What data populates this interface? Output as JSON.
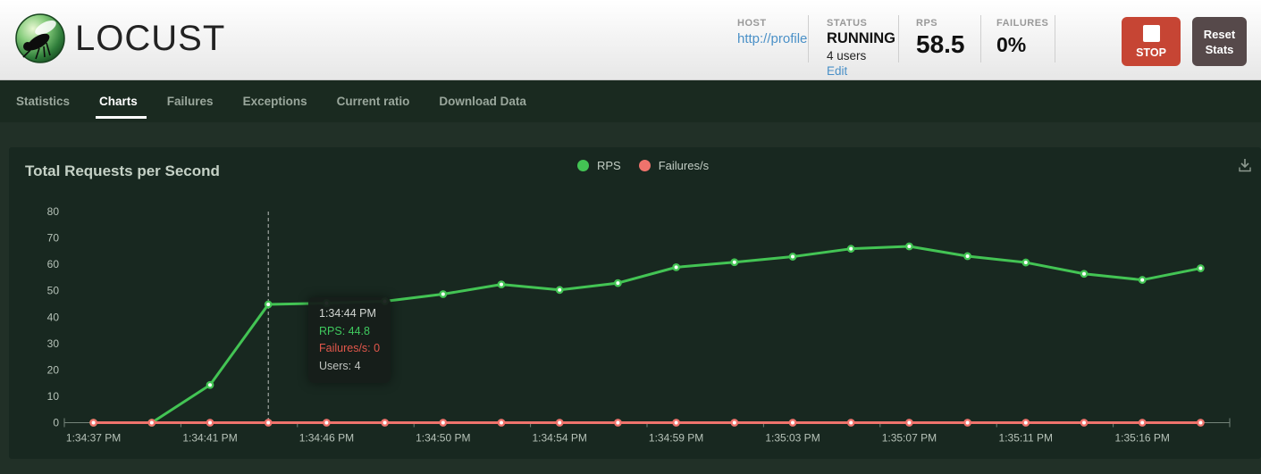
{
  "header": {
    "logo_text": "LOCUST",
    "host": {
      "label": "HOST",
      "value": "http://profile"
    },
    "status": {
      "label": "STATUS",
      "state": "RUNNING",
      "users": "4 users",
      "edit": "Edit"
    },
    "rps": {
      "label": "RPS",
      "value": "58.5"
    },
    "failures": {
      "label": "FAILURES",
      "value": "0%"
    },
    "stop_button": "STOP",
    "reset_button_line1": "Reset",
    "reset_button_line2": "Stats"
  },
  "icons": {
    "logo": "locust-logo-icon",
    "stop_square": "stop-square-icon",
    "download": "download-icon"
  },
  "nav": {
    "tabs": [
      "Statistics",
      "Charts",
      "Failures",
      "Exceptions",
      "Current ratio",
      "Download Data"
    ],
    "active_tab": "Charts"
  },
  "colors": {
    "rps_green": "#43c454",
    "failures_red": "#ef736c",
    "link_blue": "#4a90c7",
    "stop_red": "#c64534",
    "reset_gray": "#56494a",
    "panel_bg": "#182820",
    "nav_bg": "#1a2a20",
    "page_bg": "#213027"
  },
  "chart_data": {
    "type": "line",
    "title": "Total Requests per Second",
    "xlabel": "",
    "ylabel": "",
    "ylim": [
      0,
      80
    ],
    "y_ticks": [
      0,
      10,
      20,
      30,
      40,
      50,
      60,
      70,
      80
    ],
    "grid": false,
    "legend_position": "top-center",
    "label_every": 2,
    "x_labels_shown": [
      "1:34:37 PM",
      "1:34:41 PM",
      "1:34:46 PM",
      "1:34:50 PM",
      "1:34:54 PM",
      "1:34:59 PM",
      "1:35:03 PM",
      "1:35:07 PM",
      "1:35:11 PM",
      "1:35:16 PM"
    ],
    "series": [
      {
        "name": "RPS",
        "color": "#43c454",
        "values": [
          0,
          0,
          14.3,
          44.8,
          45.3,
          46.0,
          48.7,
          52.4,
          50.3,
          52.9,
          58.9,
          60.8,
          62.9,
          65.9,
          66.8,
          63.1,
          60.7,
          56.4,
          54.1,
          58.5
        ]
      },
      {
        "name": "Failures/s",
        "color": "#ef736c",
        "values": [
          0,
          0,
          0,
          0,
          0,
          0,
          0,
          0,
          0,
          0,
          0,
          0,
          0,
          0,
          0,
          0,
          0,
          0,
          0,
          0
        ]
      }
    ],
    "tooltip": {
      "index": 3,
      "time": "1:34:44 PM",
      "rps_text": "RPS: 44.8",
      "failures_text": "Failures/s: 0",
      "users_text": "Users: 4"
    }
  }
}
